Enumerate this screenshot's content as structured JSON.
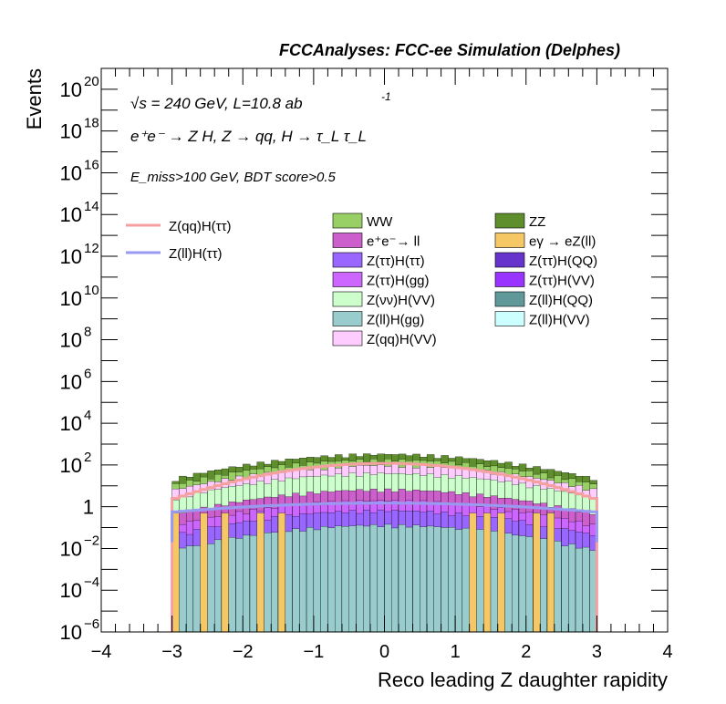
{
  "header": {
    "title": "FCCAnalyses: FCC-ee Simulation (Delphes)"
  },
  "annotations": {
    "energy_line": "√s = 240 GeV, L=10.8 ab",
    "energy_sup": "-1",
    "process_line": "e⁺e⁻ → Z H, Z → qq, H → τ_L τ_L",
    "cut_line": "E_miss>100 GeV, BDT score>0.5"
  },
  "legend_signal": [
    {
      "label": "Z(qq)H(ττ)",
      "color": "#f4a0a0"
    },
    {
      "label": "Z(ll)H(ττ)",
      "color": "#9999f0"
    }
  ],
  "legend_background": [
    {
      "label": "WW",
      "color": "#99d066"
    },
    {
      "label": "ZZ",
      "color": "#5f8f2c"
    },
    {
      "label": "e⁺e⁻→ ll",
      "color": "#cc5fcc"
    },
    {
      "label": "eγ → eZ(ll)",
      "color": "#f5c865"
    },
    {
      "label": "Z(ττ)H(ττ)",
      "color": "#9966ff"
    },
    {
      "label": "Z(ττ)H(QQ)",
      "color": "#6633cc"
    },
    {
      "label": "Z(ττ)H(gg)",
      "color": "#cc66ff"
    },
    {
      "label": "Z(ττ)H(VV)",
      "color": "#9933ff"
    },
    {
      "label": "Z(νν)H(VV)",
      "color": "#ccffcc"
    },
    {
      "label": "Z(ll)H(QQ)",
      "color": "#5f9999"
    },
    {
      "label": "Z(ll)H(gg)",
      "color": "#99cccc"
    },
    {
      "label": "Z(ll)H(VV)",
      "color": "#ccffff"
    },
    {
      "label": "Z(qq)H(VV)",
      "color": "#ffccff"
    }
  ],
  "chart_data": {
    "type": "area",
    "title": "",
    "xlabel": "Reco leading Z daughter rapidity",
    "ylabel": "Events",
    "xlim": [
      -4,
      4
    ],
    "ylim": [
      1e-06,
      1e+21
    ],
    "log_y": true,
    "x_ticks": [
      "−4",
      "−3",
      "−2",
      "−1",
      "0",
      "1",
      "2",
      "3",
      "4"
    ],
    "y_ticks": [
      {
        "base": "10",
        "exp": "−6",
        "value": 1e-06
      },
      {
        "base": "10",
        "exp": "−4",
        "value": 0.0001
      },
      {
        "base": "10",
        "exp": "−2",
        "value": 0.01
      },
      {
        "base": "1",
        "exp": "",
        "value": 1
      },
      {
        "base": "10",
        "exp": "2",
        "value": 100.0
      },
      {
        "base": "10",
        "exp": "4",
        "value": 10000.0
      },
      {
        "base": "10",
        "exp": "6",
        "value": 1000000.0
      },
      {
        "base": "10",
        "exp": "8",
        "value": 100000000.0
      },
      {
        "base": "10",
        "exp": "10",
        "value": 10000000000.0
      },
      {
        "base": "10",
        "exp": "12",
        "value": 1000000000000.0
      },
      {
        "base": "10",
        "exp": "14",
        "value": 100000000000000.0
      },
      {
        "base": "10",
        "exp": "16",
        "value": 1e+16
      },
      {
        "base": "10",
        "exp": "18",
        "value": 1e+18
      },
      {
        "base": "10",
        "exp": "20",
        "value": 1e+20
      }
    ],
    "x_range_filled": [
      -3.0,
      3.0
    ],
    "stack_top_peak": 300,
    "signal_qq_peak": 120,
    "signal_ll_peak": 1.5,
    "eg_bins_y": 0.5,
    "legend_placement": "upper-left and upper-center"
  }
}
